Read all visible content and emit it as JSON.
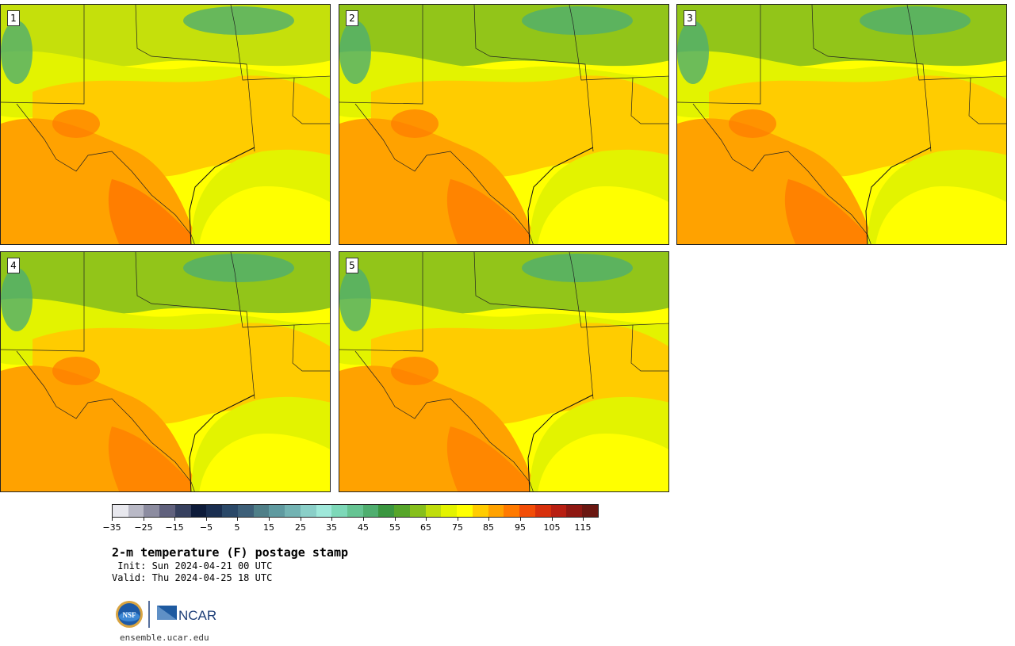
{
  "panels": [
    {
      "label": "1"
    },
    {
      "label": "2"
    },
    {
      "label": "3"
    },
    {
      "label": "4"
    },
    {
      "label": "5"
    }
  ],
  "colorbar": {
    "colors": [
      "#e8e8ee",
      "#b9b9c6",
      "#8c8ca0",
      "#60617d",
      "#36405e",
      "#0d1b3a",
      "#1a2e50",
      "#2a4868",
      "#3d5f78",
      "#4f7f88",
      "#5f9aa0",
      "#73b3b3",
      "#8acfc8",
      "#9fe8da",
      "#7dd8b8",
      "#66c493",
      "#4fae6f",
      "#3a9640",
      "#56a52a",
      "#86bf1c",
      "#bfdd0c",
      "#e3f300",
      "#ffff00",
      "#ffcc00",
      "#ffa200",
      "#ff7a00",
      "#f24d07",
      "#d7300c",
      "#b81f12",
      "#8f1812",
      "#6a1711"
    ],
    "ticks": [
      "−35",
      "−25",
      "−15",
      "−5",
      "5",
      "15",
      "25",
      "35",
      "45",
      "55",
      "65",
      "75",
      "85",
      "95",
      "105",
      "115"
    ]
  },
  "title": "2-m temperature (F) postage stamp",
  "init": " Init: Sun 2024-04-21 00 UTC",
  "valid": "Valid: Thu 2024-04-25 18 UTC",
  "logos": {
    "nsf": "NSF",
    "ncar": "NCAR"
  },
  "site": "ensemble.ucar.edu"
}
